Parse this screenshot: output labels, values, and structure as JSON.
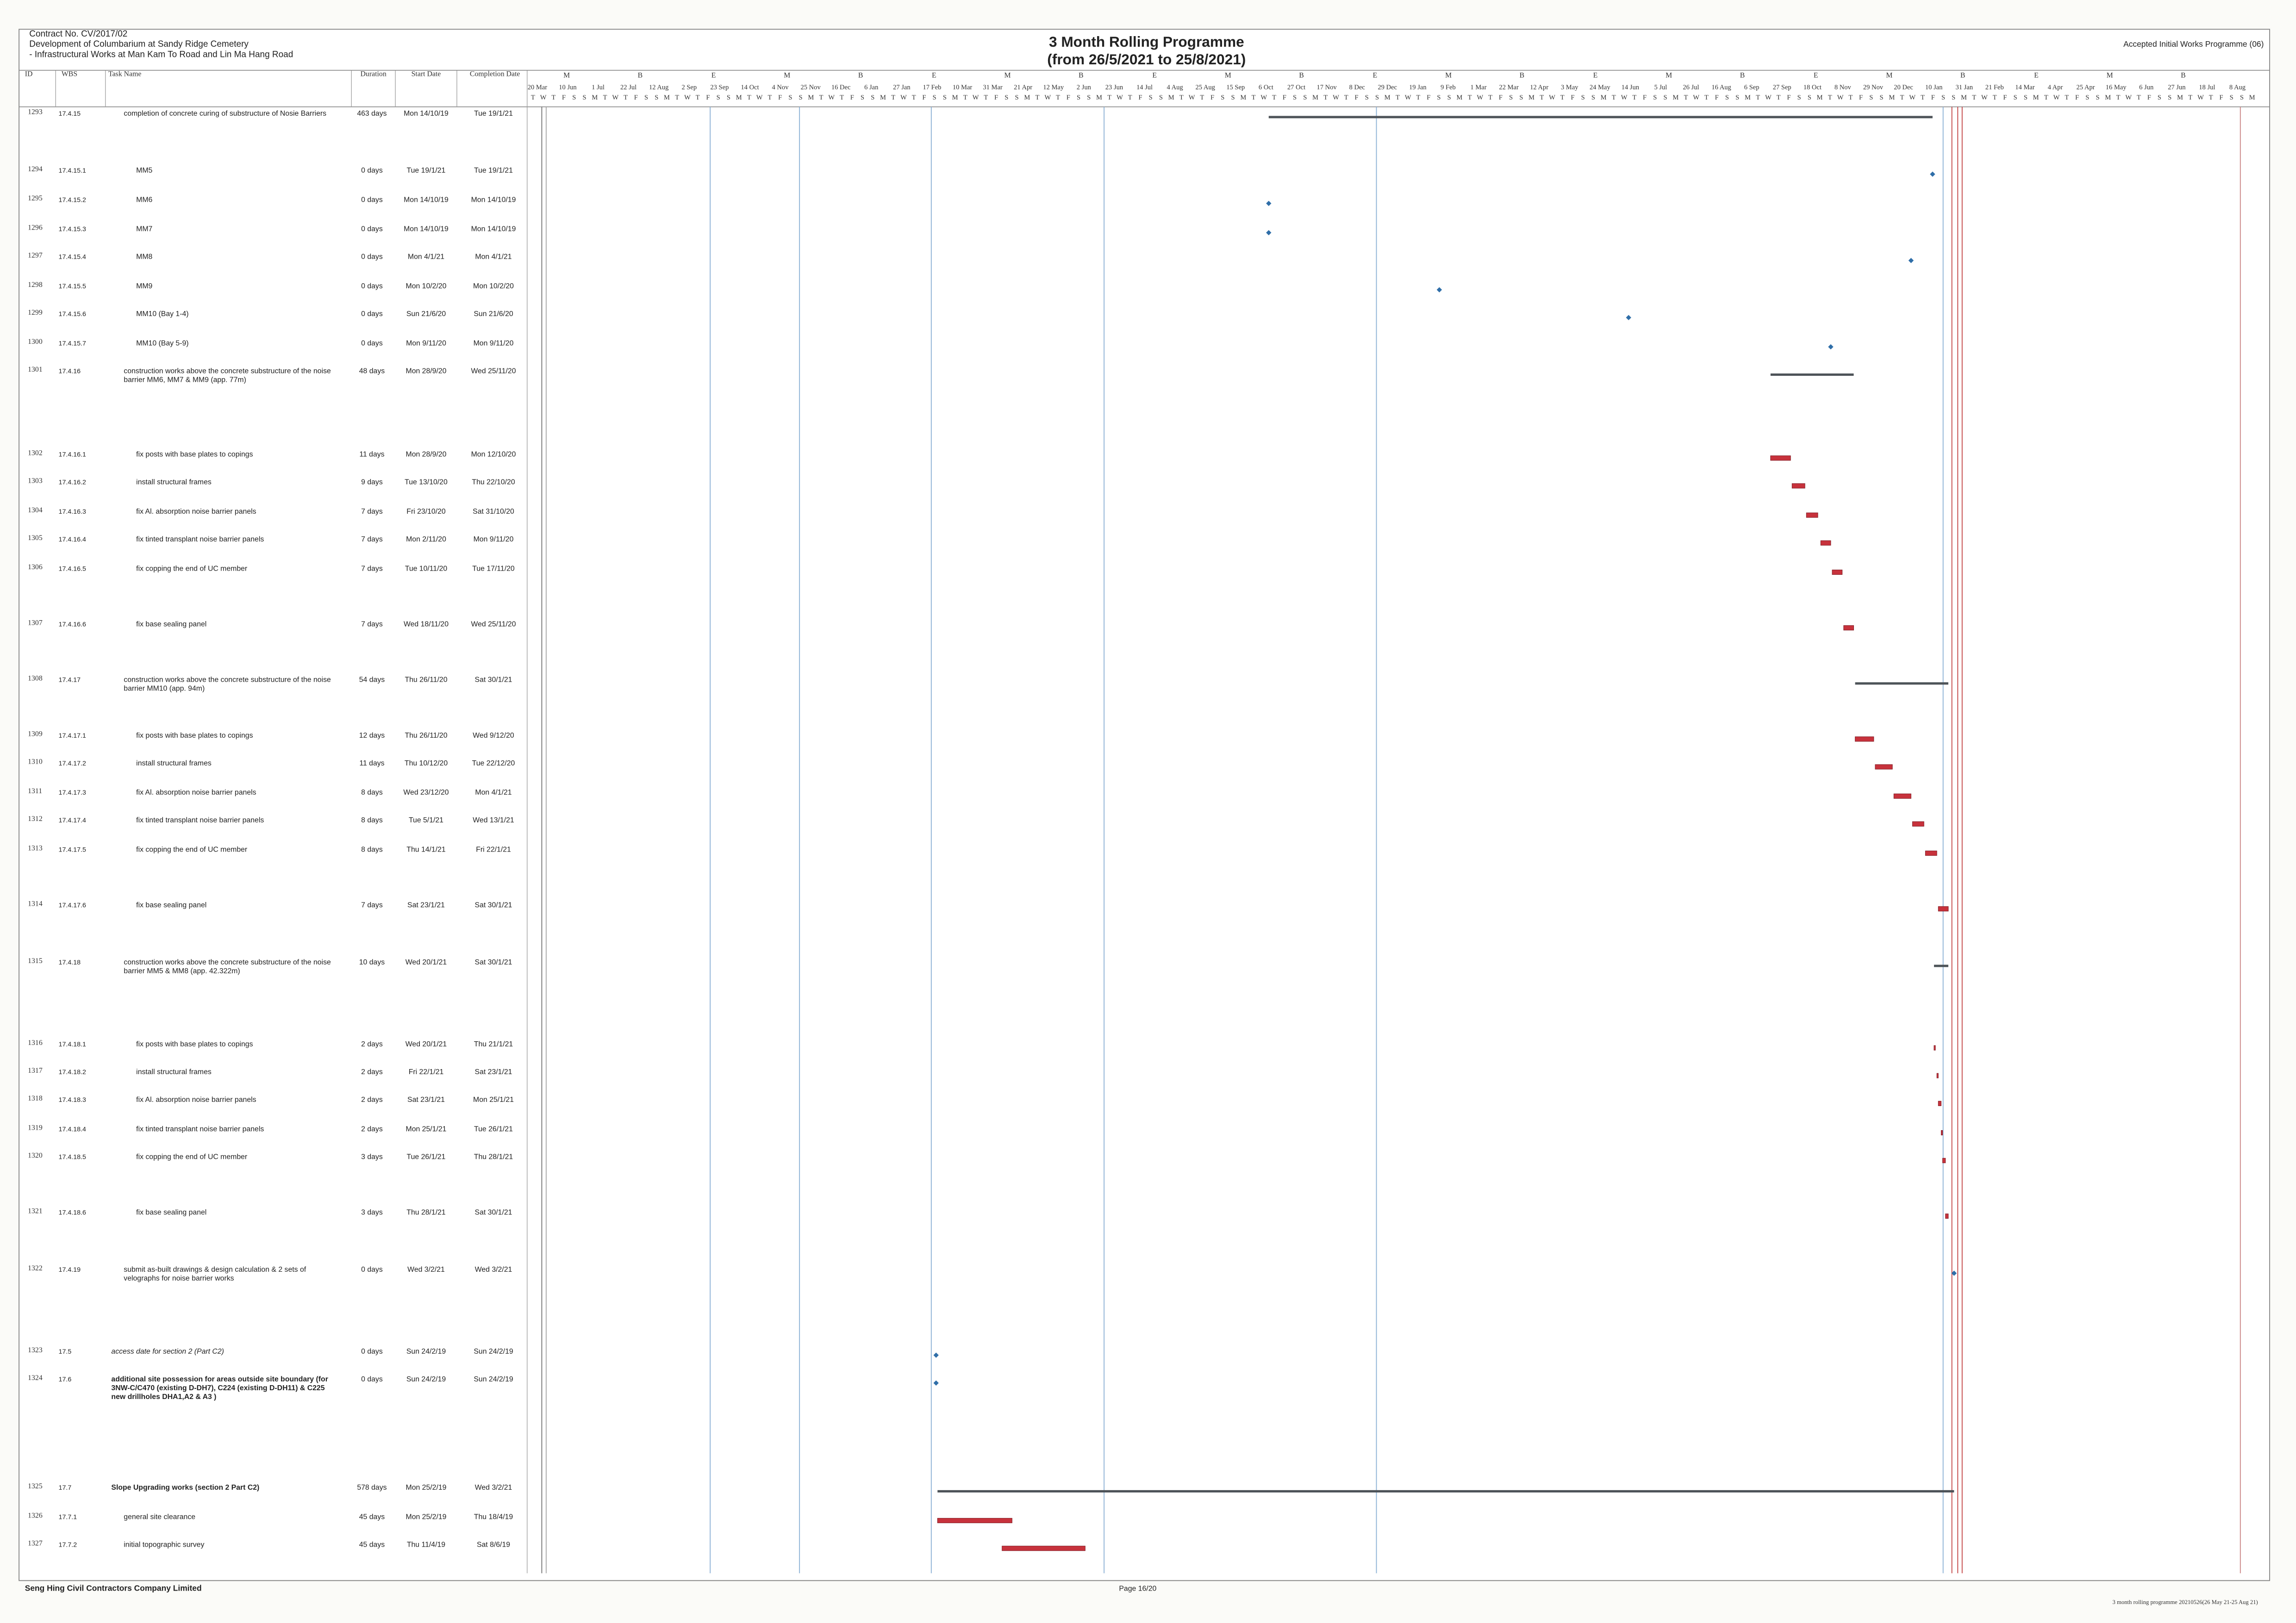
{
  "header": {
    "contract": "Contract No. CV/2017/02",
    "project": "Development of Columbarium at Sandy Ridge Cemetery",
    "works": "- Infrastructural Works at Man Kam To Road and Lin Ma Hang Road",
    "title": "3 Month Rolling Programme",
    "subtitle": "(from 26/5/2021 to 25/8/2021)",
    "programme": "Accepted Initial Works Programme (06)"
  },
  "columns": {
    "id": "ID",
    "wbs": "WBS",
    "name": "Task Name",
    "duration": "Duration",
    "start": "Start Date",
    "finish": "Completion Date"
  },
  "timeline": {
    "xlim": [
      "25/5/18",
      "6/9/21"
    ],
    "tiers": [
      "M",
      "B",
      "E",
      "M",
      "B",
      "E",
      "M",
      "B",
      "E",
      "M",
      "B",
      "E",
      "M",
      "B",
      "E",
      "M",
      "B",
      "E",
      "M",
      "B",
      "E",
      "M",
      "B"
    ],
    "dates": [
      "20 Mar",
      "10 Jun",
      "1 Jul",
      "22 Jul",
      "12 Aug",
      "2 Sep",
      "23 Sep",
      "14 Oct",
      "4 Nov",
      "25 Nov",
      "16 Dec",
      "6 Jan",
      "27 Jan",
      "17 Feb",
      "10 Mar",
      "31 Mar",
      "21 Apr",
      "12 May",
      "2 Jun",
      "23 Jun",
      "14 Jul",
      "4 Aug",
      "25 Aug",
      "15 Sep",
      "6 Oct",
      "27 Oct",
      "17 Nov",
      "8 Dec",
      "29 Dec",
      "19 Jan",
      "9 Feb",
      "1 Mar",
      "22 Mar",
      "12 Apr",
      "3 May",
      "24 May",
      "14 Jun",
      "5 Jul",
      "26 Jul",
      "16 Aug",
      "6 Sep",
      "27 Sep",
      "18 Oct",
      "8 Nov",
      "29 Nov",
      "20 Dec",
      "10 Jan",
      "31 Jan",
      "21 Feb",
      "14 Mar",
      "4 Apr",
      "25 Apr",
      "16 May",
      "6 Jun",
      "27 Jun",
      "18 Jul",
      "8 Aug"
    ],
    "weekdays": [
      "T",
      "W",
      "T",
      "F",
      "S",
      "S",
      "M"
    ]
  },
  "rows": [
    {
      "id": "1293",
      "wbs": "17.4.15",
      "name": "completion of concrete curing of substructure of Nosie Barriers",
      "duration": "463 days",
      "start": "Mon 14/10/19",
      "finish": "Tue 19/1/21",
      "summary": true
    },
    {
      "id": "1294",
      "wbs": "17.4.15.1",
      "name": "MM5",
      "duration": "0 days",
      "start": "Tue 19/1/21",
      "finish": "Tue 19/1/21"
    },
    {
      "id": "1295",
      "wbs": "17.4.15.2",
      "name": "MM6",
      "duration": "0 days",
      "start": "Mon 14/10/19",
      "finish": "Mon 14/10/19"
    },
    {
      "id": "1296",
      "wbs": "17.4.15.3",
      "name": "MM7",
      "duration": "0 days",
      "start": "Mon 14/10/19",
      "finish": "Mon 14/10/19"
    },
    {
      "id": "1297",
      "wbs": "17.4.15.4",
      "name": "MM8",
      "duration": "0 days",
      "start": "Mon 4/1/21",
      "finish": "Mon 4/1/21"
    },
    {
      "id": "1298",
      "wbs": "17.4.15.5",
      "name": "MM9",
      "duration": "0 days",
      "start": "Mon 10/2/20",
      "finish": "Mon 10/2/20"
    },
    {
      "id": "1299",
      "wbs": "17.4.15.6",
      "name": "MM10 (Bay 1-4)",
      "duration": "0 days",
      "start": "Sun 21/6/20",
      "finish": "Sun 21/6/20"
    },
    {
      "id": "1300",
      "wbs": "17.4.15.7",
      "name": "MM10 (Bay 5-9)",
      "duration": "0 days",
      "start": "Mon 9/11/20",
      "finish": "Mon 9/11/20"
    },
    {
      "id": "1301",
      "wbs": "17.4.16",
      "name": "construction works above the concrete substructure of the noise barrier MM6, MM7 & MM9 (app. 77m)",
      "duration": "48 days",
      "start": "Mon 28/9/20",
      "finish": "Wed 25/11/20",
      "summary": true
    },
    {
      "id": "1302",
      "wbs": "17.4.16.1",
      "name": "fix posts with base plates to copings",
      "duration": "11 days",
      "start": "Mon 28/9/20",
      "finish": "Mon 12/10/20"
    },
    {
      "id": "1303",
      "wbs": "17.4.16.2",
      "name": "install structural frames",
      "duration": "9 days",
      "start": "Tue 13/10/20",
      "finish": "Thu 22/10/20"
    },
    {
      "id": "1304",
      "wbs": "17.4.16.3",
      "name": "fix Al. absorption noise barrier panels",
      "duration": "7 days",
      "start": "Fri 23/10/20",
      "finish": "Sat 31/10/20"
    },
    {
      "id": "1305",
      "wbs": "17.4.16.4",
      "name": "fix tinted transplant noise barrier panels",
      "duration": "7 days",
      "start": "Mon 2/11/20",
      "finish": "Mon 9/11/20"
    },
    {
      "id": "1306",
      "wbs": "17.4.16.5",
      "name": "fix copping the end of UC member",
      "duration": "7 days",
      "start": "Tue 10/11/20",
      "finish": "Tue 17/11/20"
    },
    {
      "id": "1307",
      "wbs": "17.4.16.6",
      "name": "fix base sealing panel",
      "duration": "7 days",
      "start": "Wed 18/11/20",
      "finish": "Wed 25/11/20"
    },
    {
      "id": "1308",
      "wbs": "17.4.17",
      "name": "construction works above the concrete substructure of the noise barrier MM10 (app. 94m)",
      "duration": "54 days",
      "start": "Thu 26/11/20",
      "finish": "Sat 30/1/21",
      "summary": true
    },
    {
      "id": "1309",
      "wbs": "17.4.17.1",
      "name": "fix posts with base plates to copings",
      "duration": "12 days",
      "start": "Thu 26/11/20",
      "finish": "Wed 9/12/20"
    },
    {
      "id": "1310",
      "wbs": "17.4.17.2",
      "name": "install structural frames",
      "duration": "11 days",
      "start": "Thu 10/12/20",
      "finish": "Tue 22/12/20"
    },
    {
      "id": "1311",
      "wbs": "17.4.17.3",
      "name": "fix Al. absorption noise barrier panels",
      "duration": "8 days",
      "start": "Wed 23/12/20",
      "finish": "Mon 4/1/21"
    },
    {
      "id": "1312",
      "wbs": "17.4.17.4",
      "name": "fix tinted transplant noise barrier panels",
      "duration": "8 days",
      "start": "Tue 5/1/21",
      "finish": "Wed 13/1/21"
    },
    {
      "id": "1313",
      "wbs": "17.4.17.5",
      "name": "fix copping the end of UC member",
      "duration": "8 days",
      "start": "Thu 14/1/21",
      "finish": "Fri 22/1/21"
    },
    {
      "id": "1314",
      "wbs": "17.4.17.6",
      "name": "fix base sealing panel",
      "duration": "7 days",
      "start": "Sat 23/1/21",
      "finish": "Sat 30/1/21"
    },
    {
      "id": "1315",
      "wbs": "17.4.18",
      "name": "construction works above the concrete substructure of the noise barrier MM5 & MM8 (app. 42.322m)",
      "duration": "10 days",
      "start": "Wed 20/1/21",
      "finish": "Sat 30/1/21",
      "summary": true
    },
    {
      "id": "1316",
      "wbs": "17.4.18.1",
      "name": "fix posts with base plates to copings",
      "duration": "2 days",
      "start": "Wed 20/1/21",
      "finish": "Thu 21/1/21"
    },
    {
      "id": "1317",
      "wbs": "17.4.18.2",
      "name": "install structural frames",
      "duration": "2 days",
      "start": "Fri 22/1/21",
      "finish": "Sat 23/1/21"
    },
    {
      "id": "1318",
      "wbs": "17.4.18.3",
      "name": "fix Al. absorption noise barrier panels",
      "duration": "2 days",
      "start": "Sat 23/1/21",
      "finish": "Mon 25/1/21"
    },
    {
      "id": "1319",
      "wbs": "17.4.18.4",
      "name": "fix tinted transplant noise barrier panels",
      "duration": "2 days",
      "start": "Mon 25/1/21",
      "finish": "Tue 26/1/21"
    },
    {
      "id": "1320",
      "wbs": "17.4.18.5",
      "name": "fix copping the end of UC member",
      "duration": "3 days",
      "start": "Tue 26/1/21",
      "finish": "Thu 28/1/21"
    },
    {
      "id": "1321",
      "wbs": "17.4.18.6",
      "name": "fix base sealing panel",
      "duration": "3 days",
      "start": "Thu 28/1/21",
      "finish": "Sat 30/1/21"
    },
    {
      "id": "1322",
      "wbs": "17.4.19",
      "name": "submit as-built drawings & design calculation & 2 sets of velographs for noise barrier works",
      "duration": "0 days",
      "start": "Wed 3/2/21",
      "finish": "Wed 3/2/21"
    },
    {
      "id": "1323",
      "wbs": "17.5",
      "name": "access date for section 2 (Part C2)",
      "duration": "0 days",
      "start": "Sun 24/2/19",
      "finish": "Sun 24/2/19",
      "style": "italic"
    },
    {
      "id": "1324",
      "wbs": "17.6",
      "name": "additional site possession for areas outside site boundary (for 3NW-C/C470 (existing D-DH7), C224 (existing D-DH11) & C225 new drillholes DHA1,A2 & A3 )",
      "duration": "0 days",
      "start": "Sun 24/2/19",
      "finish": "Sun 24/2/19",
      "style": "bold"
    },
    {
      "id": "1325",
      "wbs": "17.7",
      "name": "Slope Upgrading works (section 2 Part C2)",
      "duration": "578 days",
      "start": "Mon 25/2/19",
      "finish": "Wed 3/2/21",
      "summary": true,
      "style": "bold"
    },
    {
      "id": "1326",
      "wbs": "17.7.1",
      "name": "general site clearance",
      "duration": "45 days",
      "start": "Mon 25/2/19",
      "finish": "Thu 18/4/19"
    },
    {
      "id": "1327",
      "wbs": "17.7.2",
      "name": "initial topographic survey",
      "duration": "45 days",
      "start": "Thu 11/4/19",
      "finish": "Sat 8/6/19"
    }
  ],
  "footer": {
    "company": "Seng Hing Civil Contractors Company Limited",
    "page": "Page 16/20",
    "file": "3 month rolling programme 20210526(26 May 21-25 Aug 21)"
  }
}
